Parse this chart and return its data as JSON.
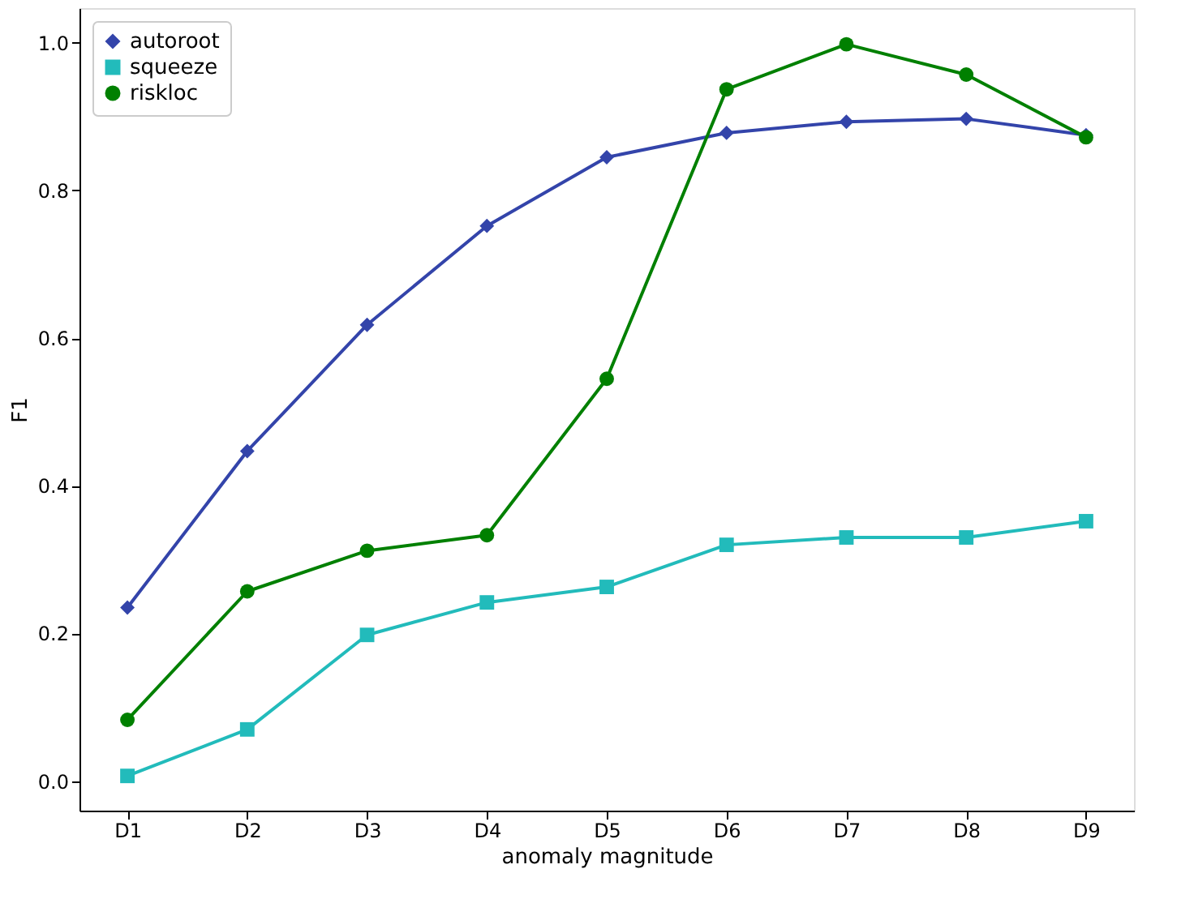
{
  "chart_data": {
    "type": "line",
    "xlabel": "anomaly magnitude",
    "ylabel": "F1",
    "categories": [
      "D1",
      "D2",
      "D3",
      "D4",
      "D5",
      "D6",
      "D7",
      "D8",
      "D9"
    ],
    "series": [
      {
        "name": "autoroot",
        "color": "#3344aa",
        "marker": "diamond",
        "values": [
          0.235,
          0.447,
          0.618,
          0.752,
          0.845,
          0.878,
          0.893,
          0.897,
          0.875
        ]
      },
      {
        "name": "squeeze",
        "color": "#22bbbb",
        "marker": "square",
        "values": [
          0.007,
          0.07,
          0.198,
          0.242,
          0.263,
          0.32,
          0.33,
          0.33,
          0.352
        ]
      },
      {
        "name": "riskloc",
        "color": "#008000",
        "marker": "circle",
        "values": [
          0.083,
          0.257,
          0.312,
          0.333,
          0.545,
          0.937,
          0.998,
          0.957,
          0.872
        ]
      }
    ],
    "ylim": [
      -0.04,
      1.047
    ],
    "yticks": [
      {
        "value": 0,
        "label": "0.0"
      },
      0.2,
      0.4,
      0.6,
      0.8,
      {
        "value": 1,
        "label": "1.0"
      }
    ],
    "grid": false,
    "legend": "top left",
    "line_style": "solid"
  }
}
